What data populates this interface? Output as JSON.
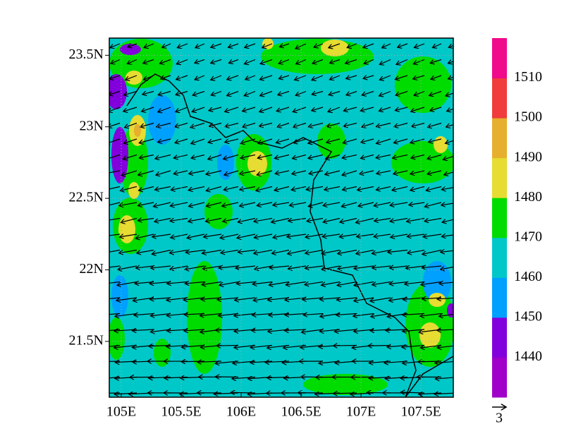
{
  "map": {
    "xlim": [
      104.9,
      107.77
    ],
    "ylim": [
      21.11,
      23.62
    ],
    "xticks": [
      {
        "value": 105,
        "label": "105E"
      },
      {
        "value": 105.5,
        "label": "105.5E"
      },
      {
        "value": 106,
        "label": "106E"
      },
      {
        "value": 106.5,
        "label": "106.5E"
      },
      {
        "value": 107,
        "label": "107E"
      },
      {
        "value": 107.5,
        "label": "107.5E"
      }
    ],
    "yticks": [
      {
        "value": 21.5,
        "label": "21.5N"
      },
      {
        "value": 22,
        "label": "22N"
      },
      {
        "value": 22.5,
        "label": "22.5N"
      },
      {
        "value": 23,
        "label": "23N"
      },
      {
        "value": 23.5,
        "label": "23.5N"
      }
    ],
    "colorbar": {
      "levels": [
        1440,
        1450,
        1460,
        1470,
        1480,
        1490,
        1500,
        1510
      ],
      "colors": [
        "#a000c8",
        "#8200dc",
        "#00a0ff",
        "#00c8c8",
        "#00dc00",
        "#e6dc32",
        "#e6af2d",
        "#f03c3c",
        "#f00a8c"
      ]
    },
    "reference_vector": {
      "label": "3"
    }
  }
}
